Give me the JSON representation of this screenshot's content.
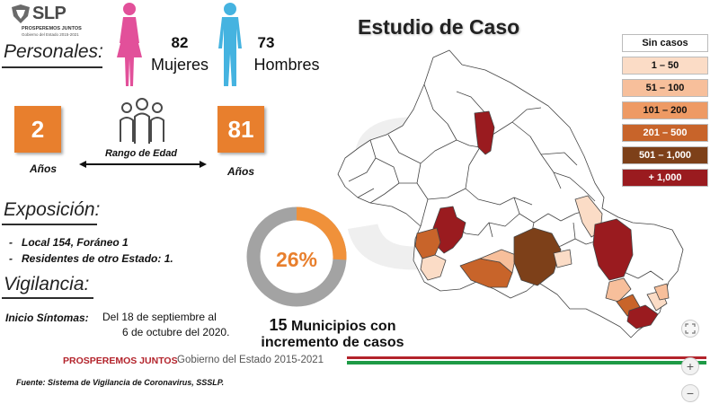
{
  "logo": {
    "word": "SLP",
    "line1": "PROSPEREMOS JUNTOS",
    "line2": "Gobierno del Estado 2015-2021"
  },
  "personales": {
    "title": "Personales:",
    "women": {
      "count": "82",
      "label": "Mujeres",
      "color": "#e2509a",
      "icon": "female-figure-icon"
    },
    "men": {
      "count": "73",
      "label": "Hombres",
      "color": "#45b3e0",
      "icon": "male-figure-icon"
    }
  },
  "edad": {
    "min_value": "2",
    "min_label": "Años",
    "max_value": "81",
    "max_label": "Años",
    "range_label": "Rango de Edad",
    "icon": "group-people-icon",
    "box_color": "#e87f2d"
  },
  "exposicion": {
    "title": "Exposición:",
    "items": [
      "Local  154, Foráneo 1",
      "Residentes de otro Estado: 1."
    ]
  },
  "vigilancia": {
    "title": "Vigilancia:",
    "inicio_label": "Inicio Síntomas:",
    "inicio_line1": "Del 18 de septiembre al",
    "inicio_line2": "6 de octubre del 2020."
  },
  "main_title": "Estudio de Caso",
  "donut": {
    "percent_label": "26%",
    "percent": 0.26,
    "fill_color": "#f0913a",
    "rest_color": "#a3a3a3"
  },
  "municipios": {
    "count": "15",
    "line1": "Municipios con",
    "line2": "incremento de casos"
  },
  "legend": [
    {
      "label": "Sin casos",
      "color": "#ffffff"
    },
    {
      "label": "1 – 50",
      "color": "#fbdcc6"
    },
    {
      "label": "51 – 100",
      "color": "#f7bf9b"
    },
    {
      "label": "101 – 200",
      "color": "#ee9a64"
    },
    {
      "label": "201 – 500",
      "color": "#c8642a"
    },
    {
      "label": "501 – 1,000",
      "color": "#7d4019"
    },
    {
      "label": "+ 1,000",
      "color": "#9a1b1f"
    }
  ],
  "footer": {
    "brand": "PROSPEREMOS JUNTOS",
    "gov": "Gobierno del Estado 2015-2021",
    "source": "Fuente: Sistema de Vigilancia de Coronavirus, SSSLP.",
    "stripe_colors": [
      "#b3232b",
      "#ffffff",
      "#1e9a46"
    ]
  },
  "controls": {
    "fullscreen_icon": "expand-icon",
    "zoom_in": "+",
    "zoom_out": "−"
  }
}
